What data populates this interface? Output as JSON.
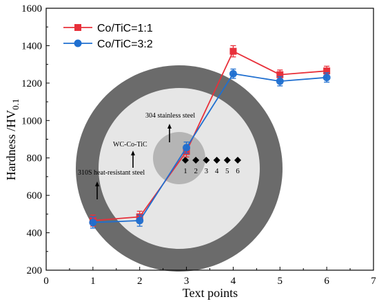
{
  "chart_data": {
    "type": "line",
    "xlabel": "Text points",
    "ylabel_main": "Hardness /HV",
    "ylabel_sub": "0.1",
    "xlim": [
      0,
      7
    ],
    "ylim": [
      200,
      1600
    ],
    "xticks": [
      0,
      1,
      2,
      3,
      4,
      5,
      6,
      7
    ],
    "yticks": [
      200,
      400,
      600,
      800,
      1000,
      1200,
      1400,
      1600
    ],
    "legend_position": "top-left",
    "series": [
      {
        "name": "Co/TiC=1:1",
        "color": "#e8303a",
        "marker": "square",
        "x": [
          1,
          2,
          3,
          4,
          5,
          6
        ],
        "y": [
          465,
          485,
          835,
          1370,
          1245,
          1265
        ],
        "err": [
          30,
          30,
          30,
          30,
          25,
          25
        ]
      },
      {
        "name": "Co/TiC=3:2",
        "color": "#1f6fd0",
        "marker": "circle",
        "x": [
          1,
          2,
          3,
          4,
          5,
          6
        ],
        "y": [
          455,
          465,
          855,
          1250,
          1210,
          1230
        ],
        "err": [
          30,
          30,
          30,
          25,
          25,
          25
        ]
      }
    ],
    "inset": {
      "outer_ring_color": "#6b6b6b",
      "middle_disc_color": "#e6e6e6",
      "inner_disc_color": "#b5b5b5",
      "labels": {
        "outer": "310S heat-resistant steel",
        "middle": "WC-Co-TiC",
        "inner": "304 stainless steel"
      },
      "point_labels": [
        "1",
        "2",
        "3",
        "4",
        "5",
        "6"
      ]
    }
  }
}
